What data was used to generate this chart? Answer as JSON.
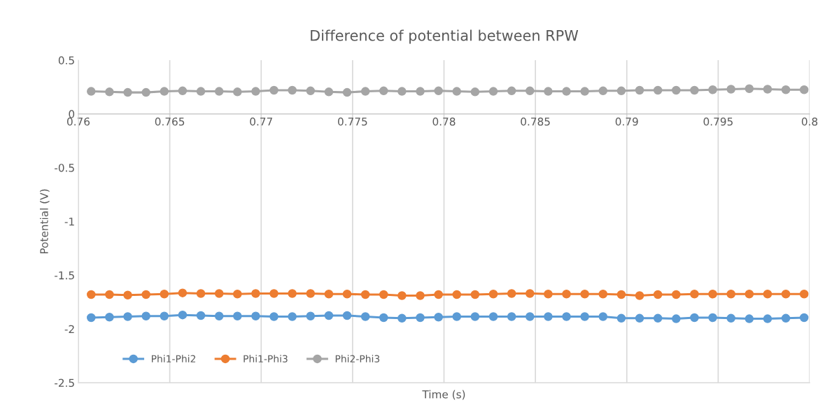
{
  "chart_data": {
    "type": "line",
    "title": "Difference of potential between RPW",
    "xlabel": "Time (s)",
    "ylabel": "Potential (V)",
    "x": [
      0.7607,
      0.7617,
      0.7627,
      0.7637,
      0.7647,
      0.7657,
      0.7667,
      0.7677,
      0.7687,
      0.7697,
      0.7707,
      0.7717,
      0.7727,
      0.7737,
      0.7747,
      0.7757,
      0.7767,
      0.7777,
      0.7787,
      0.7797,
      0.7807,
      0.7817,
      0.7827,
      0.7837,
      0.7847,
      0.7857,
      0.7867,
      0.7877,
      0.7887,
      0.7897,
      0.7907,
      0.7917,
      0.7927,
      0.7937,
      0.7947,
      0.7957,
      0.7967,
      0.7977,
      0.7987,
      0.7997
    ],
    "series": [
      {
        "name": "Phi1-Phi2",
        "color": "#5b9bd5",
        "values": [
          -1.895,
          -1.89,
          -1.885,
          -1.88,
          -1.88,
          -1.87,
          -1.875,
          -1.88,
          -1.88,
          -1.88,
          -1.885,
          -1.885,
          -1.88,
          -1.875,
          -1.875,
          -1.885,
          -1.895,
          -1.9,
          -1.895,
          -1.89,
          -1.885,
          -1.885,
          -1.885,
          -1.885,
          -1.885,
          -1.885,
          -1.885,
          -1.885,
          -1.885,
          -1.9,
          -1.9,
          -1.9,
          -1.905,
          -1.895,
          -1.895,
          -1.9,
          -1.905,
          -1.905,
          -1.9,
          -1.895
        ]
      },
      {
        "name": "Phi1-Phi3",
        "color": "#ed7d31",
        "values": [
          -1.68,
          -1.68,
          -1.685,
          -1.68,
          -1.675,
          -1.665,
          -1.67,
          -1.67,
          -1.675,
          -1.67,
          -1.67,
          -1.67,
          -1.67,
          -1.675,
          -1.675,
          -1.68,
          -1.68,
          -1.69,
          -1.69,
          -1.68,
          -1.68,
          -1.68,
          -1.675,
          -1.67,
          -1.67,
          -1.675,
          -1.675,
          -1.675,
          -1.675,
          -1.68,
          -1.69,
          -1.68,
          -1.68,
          -1.675,
          -1.675,
          -1.675,
          -1.675,
          -1.675,
          -1.675,
          -1.675
        ]
      },
      {
        "name": "Phi2-Phi3",
        "color": "#a5a5a5",
        "values": [
          0.21,
          0.205,
          0.2,
          0.2,
          0.21,
          0.215,
          0.21,
          0.21,
          0.205,
          0.21,
          0.22,
          0.22,
          0.215,
          0.205,
          0.2,
          0.21,
          0.215,
          0.21,
          0.21,
          0.215,
          0.21,
          0.205,
          0.21,
          0.215,
          0.215,
          0.21,
          0.21,
          0.21,
          0.215,
          0.215,
          0.22,
          0.22,
          0.22,
          0.22,
          0.225,
          0.23,
          0.235,
          0.23,
          0.225,
          0.225
        ]
      }
    ],
    "xlim": [
      0.76,
      0.8
    ],
    "xticks": [
      0.76,
      0.765,
      0.77,
      0.775,
      0.78,
      0.785,
      0.79,
      0.795,
      0.8
    ],
    "ylim": [
      -2.5,
      0.5
    ],
    "yticks": [
      -2.5,
      -2,
      -1.5,
      -1,
      -0.5,
      0,
      0.5
    ],
    "grid": "x",
    "legend": "bottom left",
    "marker": "circle",
    "line_style": "solid"
  }
}
